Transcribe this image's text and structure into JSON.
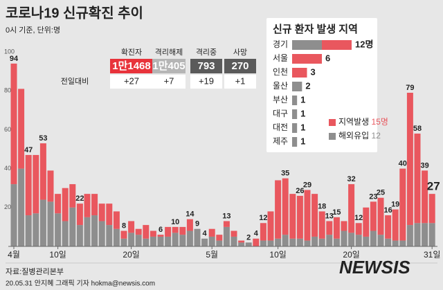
{
  "title": "코로나19 신규확진 추이",
  "subtitle": "0시 기준, 단위:명",
  "summary": {
    "headers": [
      "확진자",
      "격리해제",
      "격리중",
      "사망"
    ],
    "totals": [
      "1만1468",
      "1만405",
      "793",
      "270"
    ],
    "row_label": "전일대비",
    "changes": [
      "+27",
      "+7",
      "+19",
      "+1"
    ]
  },
  "source": "자료:질병관리본부",
  "credit": "20.05.31 안지혜 그래픽 기자 hokma@newsis.com",
  "watermark": "NEWSIS",
  "chart_data": [
    {
      "type": "stacked-bar",
      "categories": [
        "4월",
        null,
        null,
        null,
        null,
        null,
        "10일",
        null,
        null,
        null,
        null,
        null,
        null,
        null,
        null,
        null,
        "20일",
        null,
        null,
        null,
        null,
        null,
        null,
        null,
        null,
        null,
        null,
        "5월",
        null,
        null,
        null,
        null,
        null,
        null,
        null,
        null,
        "10일",
        null,
        null,
        null,
        null,
        null,
        null,
        null,
        null,
        null,
        "20일",
        null,
        null,
        null,
        null,
        null,
        null,
        null,
        null,
        null,
        null,
        "31일"
      ],
      "series": [
        {
          "name": "지역발생",
          "color": "#e9575e",
          "latest_label": "15명",
          "values": [
            62,
            41,
            31,
            30,
            29,
            16,
            10,
            17,
            12,
            11,
            12,
            11,
            9,
            11,
            9,
            4,
            6,
            3,
            7,
            3,
            1,
            5,
            3,
            4,
            6,
            0,
            0,
            4,
            3,
            3,
            3,
            1,
            0,
            4,
            9,
            15,
            30,
            29,
            23,
            22,
            26,
            22,
            14,
            7,
            11,
            5,
            25,
            6,
            15,
            15,
            19,
            12,
            16,
            37,
            68,
            46,
            27,
            15
          ]
        },
        {
          "name": "해외유입",
          "color": "#8e8e8e",
          "latest_label": "12",
          "values": [
            32,
            40,
            16,
            17,
            24,
            23,
            17,
            13,
            20,
            11,
            15,
            16,
            13,
            11,
            9,
            4,
            7,
            6,
            4,
            5,
            5,
            5,
            7,
            6,
            8,
            9,
            4,
            5,
            3,
            10,
            5,
            2,
            2,
            0,
            3,
            3,
            4,
            6,
            4,
            4,
            3,
            5,
            4,
            6,
            4,
            8,
            7,
            6,
            5,
            8,
            6,
            4,
            3,
            3,
            11,
            12,
            12,
            12
          ]
        }
      ],
      "totals": [
        94,
        null,
        47,
        null,
        53,
        null,
        null,
        null,
        null,
        22,
        null,
        null,
        null,
        null,
        null,
        8,
        null,
        null,
        null,
        null,
        6,
        null,
        10,
        null,
        14,
        9,
        4,
        null,
        null,
        13,
        null,
        null,
        2,
        4,
        12,
        null,
        null,
        35,
        null,
        26,
        29,
        null,
        18,
        13,
        15,
        null,
        32,
        12,
        null,
        23,
        25,
        16,
        19,
        40,
        79,
        58,
        39,
        27
      ],
      "ylim": [
        0,
        100
      ],
      "yticks": [
        20,
        40,
        60,
        80,
        100
      ]
    },
    {
      "type": "stacked-hbar",
      "title": "신규 환자 발생 지역",
      "categories": [
        "경기",
        "서울",
        "인천",
        "울산",
        "부산",
        "대구",
        "대전",
        "제주"
      ],
      "series": [
        {
          "color": "#e9575e",
          "values": [
            6,
            6,
            3,
            0,
            0,
            0,
            0,
            0
          ]
        },
        {
          "color": "#8e8e8e",
          "values": [
            6,
            0,
            0,
            2,
            1,
            1,
            1,
            1
          ]
        }
      ],
      "totals": [
        {
          "value": 12,
          "label": "12명"
        },
        6,
        3,
        2,
        1,
        1,
        1,
        1
      ]
    }
  ]
}
